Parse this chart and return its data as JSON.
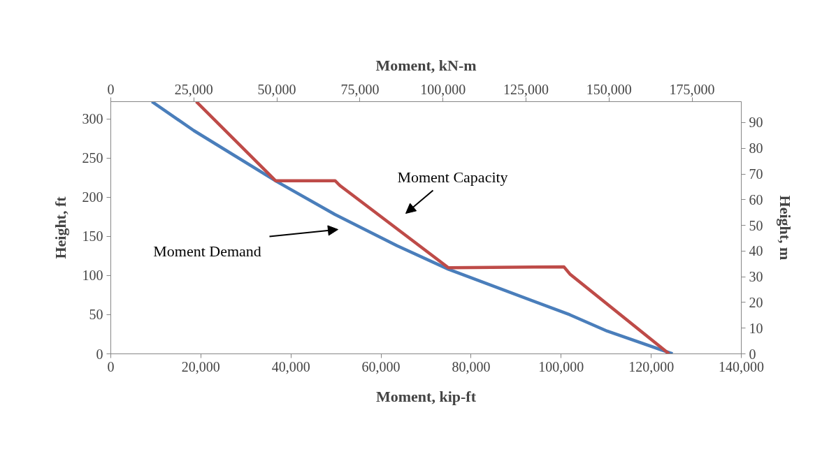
{
  "chart_data": {
    "type": "line",
    "xlabel": "Moment, kip-ft",
    "x2label": "Moment, kN-m",
    "ylabel": "Height, ft",
    "y2label": "Height, m",
    "xlim": [
      0,
      140000
    ],
    "xticks": [
      0,
      {
        "value": 20000,
        "label": "20,000"
      },
      {
        "value": 40000,
        "label": "40,000"
      },
      {
        "value": 60000,
        "label": "60,000"
      },
      {
        "value": 80000,
        "label": "80,000"
      },
      {
        "value": 100000,
        "label": "100,000"
      },
      {
        "value": 120000,
        "label": "120,000"
      },
      {
        "value": 140000,
        "label": "140,000"
      }
    ],
    "x2lim": [
      0,
      189812
    ],
    "x2ticks": [
      0,
      {
        "value": 25000,
        "label": "25,000"
      },
      {
        "value": 50000,
        "label": "50,000"
      },
      {
        "value": 75000,
        "label": "75,000"
      },
      {
        "value": 100000,
        "label": "100,000"
      },
      {
        "value": 125000,
        "label": "125,000"
      },
      {
        "value": 150000,
        "label": "150,000"
      },
      {
        "value": 175000,
        "label": "175,000"
      }
    ],
    "ylim": [
      0,
      322
    ],
    "yticks": [
      0,
      50,
      100,
      150,
      200,
      250,
      300
    ],
    "y2lim": [
      0,
      98.15
    ],
    "y2ticks": [
      0,
      10,
      20,
      30,
      40,
      50,
      60,
      70,
      80,
      90
    ],
    "grid": false,
    "marker": "none",
    "line_style": "solid",
    "series": [
      {
        "color": "#4a7ebb",
        "x": [
          9130,
          18460,
          36860,
          49780,
          63570,
          74970,
          101900,
          110230,
          124750
        ],
        "values": [
          322,
          285,
          220,
          178,
          138,
          108,
          50,
          29,
          0
        ]
      },
      {
        "color": "#be4b48",
        "x": [
          18980,
          36600,
          49830,
          50860,
          74710,
          74970,
          100640,
          101930,
          123970
        ],
        "values": [
          322,
          221,
          221,
          215,
          111,
          110,
          111,
          102,
          0
        ]
      }
    ],
    "annotations": [
      "Moment Capacity",
      "Moment Demand"
    ]
  }
}
